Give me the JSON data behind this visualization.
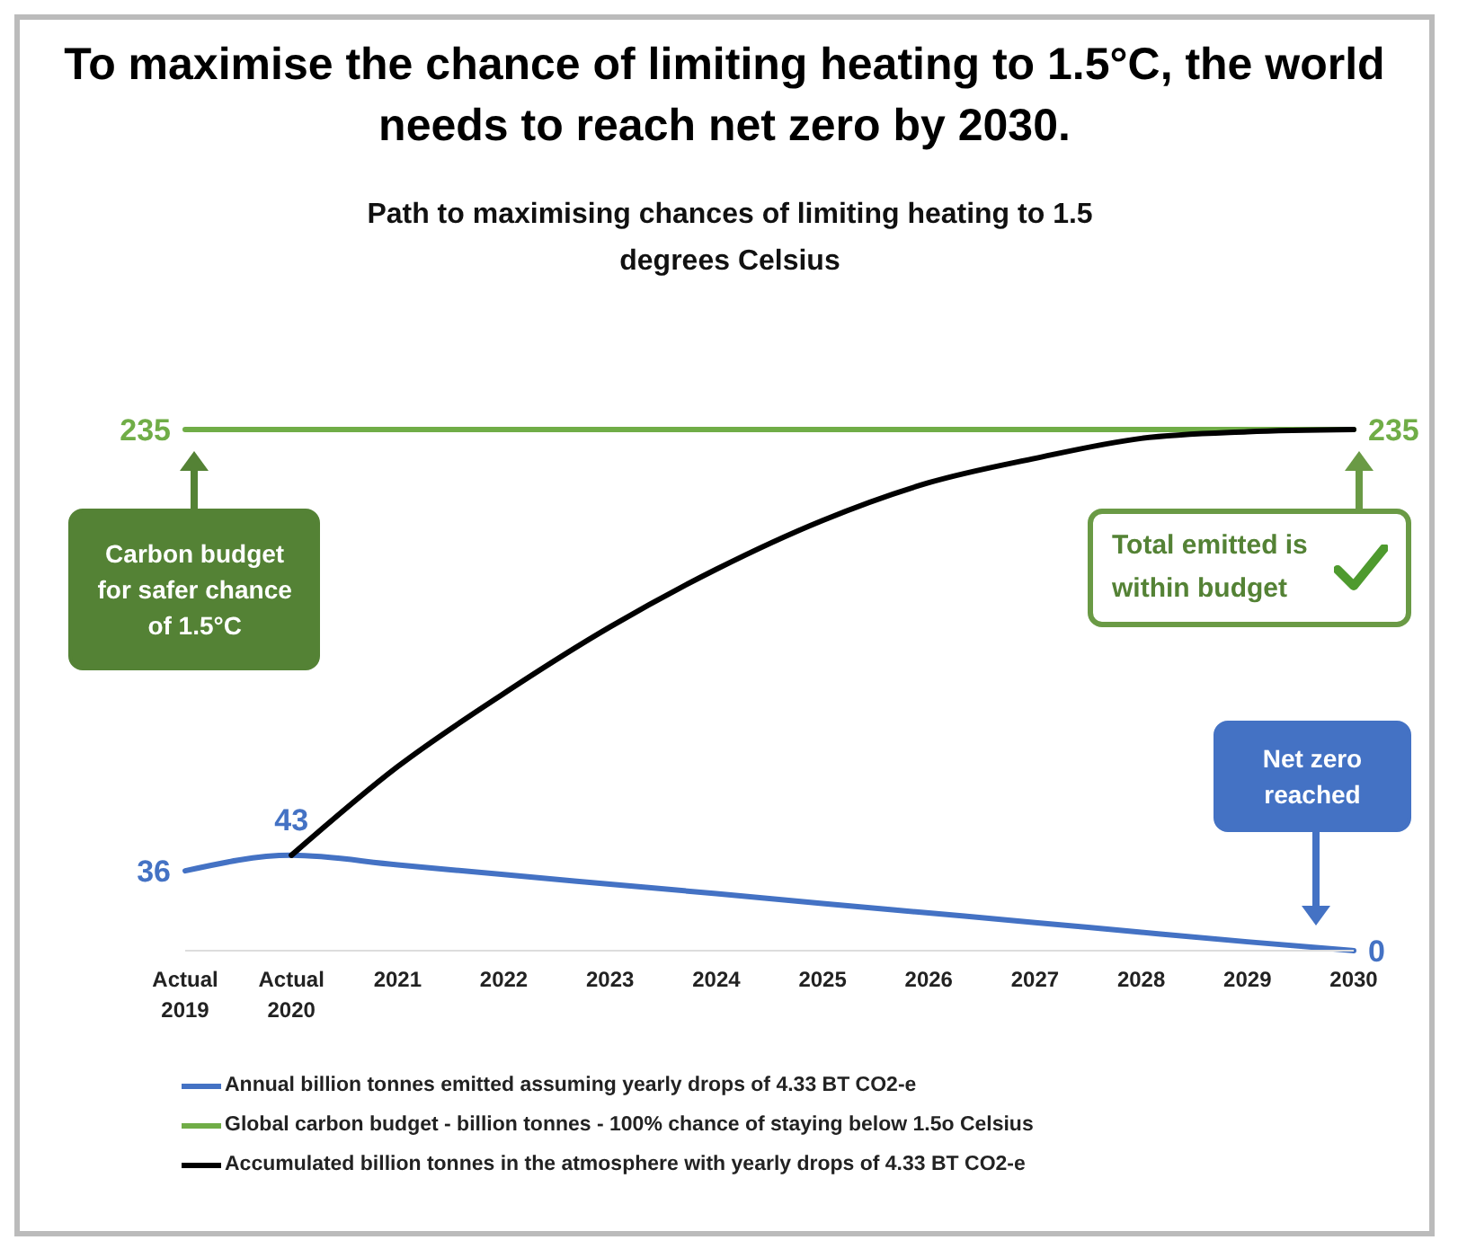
{
  "chart_data": {
    "type": "line",
    "title": "To maximise the chance of limiting heating to 1.5°C, the world needs to reach net zero by 2030.",
    "subtitle": "Path to maximising chances of limiting heating to 1.5 degrees Celsius",
    "categories": [
      "Actual 2019",
      "Actual 2020",
      "2021",
      "2022",
      "2023",
      "2024",
      "2025",
      "2026",
      "2027",
      "2028",
      "2029",
      "2030"
    ],
    "series": [
      {
        "name": "Annual billion tonnes emitted assuming yearly drops of 4.33 BT CO2-e",
        "color": "#4472c4",
        "values": [
          36,
          43,
          38.7,
          34.3,
          30,
          25.7,
          21.3,
          17,
          12.7,
          8.3,
          4,
          0
        ],
        "value_labels": [
          "36",
          "43",
          null,
          null,
          null,
          null,
          null,
          null,
          null,
          null,
          null,
          "0"
        ]
      },
      {
        "name": "Global carbon budget - billion tonnes - 100% chance of staying below 1.5o Celsius",
        "color": "#70ad47",
        "values": [
          235,
          235,
          235,
          235,
          235,
          235,
          235,
          235,
          235,
          235,
          235,
          235
        ],
        "value_labels": [
          "235",
          null,
          null,
          null,
          null,
          null,
          null,
          null,
          null,
          null,
          null,
          "235"
        ]
      },
      {
        "name": "Accumulated billion tonnes in the atmosphere with yearly drops of 4.33 BT CO2-e",
        "color": "#000000",
        "values": [
          null,
          43,
          83,
          116,
          146,
          172,
          194,
          211,
          222,
          231,
          234,
          235
        ]
      }
    ],
    "grid": false,
    "legend": "bottom",
    "marker": "none",
    "line_style": "solid",
    "annotations": [
      "Carbon budget for safer chance of 1.5°C",
      "Total emitted is within budget",
      "Net zero reached"
    ]
  }
}
